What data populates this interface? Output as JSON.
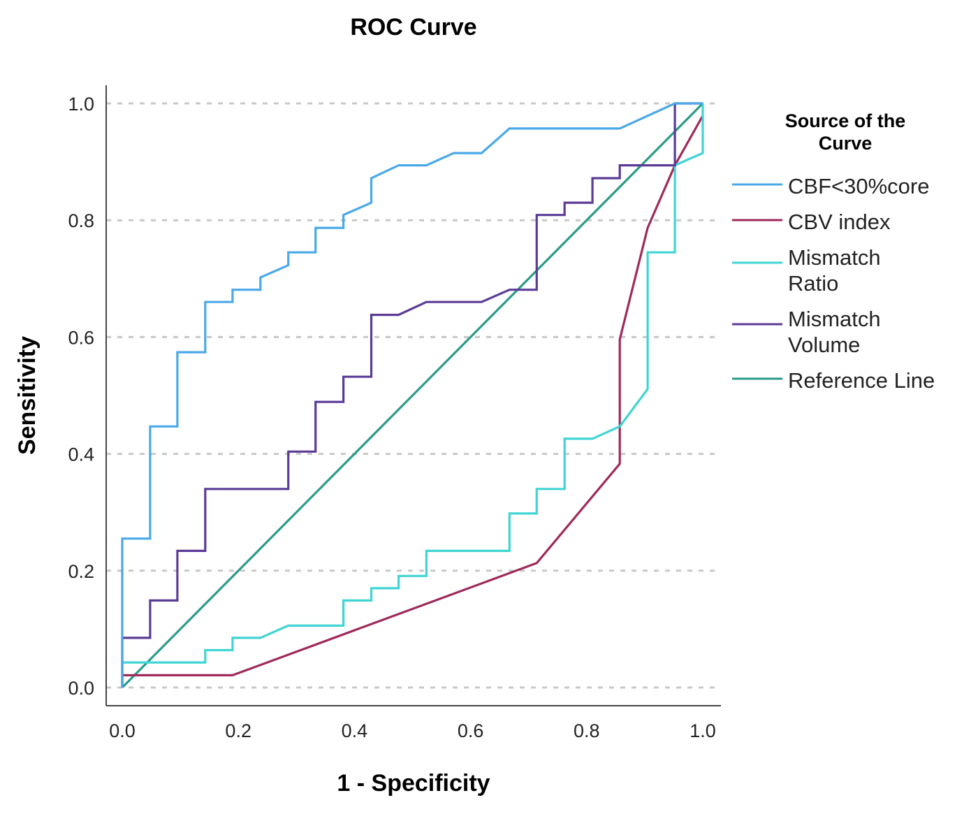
{
  "chart_data": {
    "type": "line",
    "title": "ROC Curve",
    "xlabel": "1 - Specificity",
    "ylabel": "Sensitivity",
    "xlim": [
      0,
      1
    ],
    "ylim": [
      0,
      1
    ],
    "xticks": [
      "0.0",
      "0.2",
      "0.4",
      "0.6",
      "0.8",
      "1.0"
    ],
    "yticks": [
      "0.0",
      "0.2",
      "0.4",
      "0.6",
      "0.8",
      "1.0"
    ],
    "grid": "horizontal dashed",
    "legend": {
      "title": [
        "Source of the",
        "Curve"
      ],
      "placement": "right"
    },
    "series": [
      {
        "name": "CBF<30%core",
        "legend_lines": [
          "CBF<30%core"
        ],
        "color": "#4aa8e8",
        "points": [
          [
            0,
            0
          ],
          [
            0,
            0.255
          ],
          [
            0.048,
            0.255
          ],
          [
            0.048,
            0.447
          ],
          [
            0.095,
            0.447
          ],
          [
            0.095,
            0.574
          ],
          [
            0.143,
            0.574
          ],
          [
            0.143,
            0.66
          ],
          [
            0.19,
            0.66
          ],
          [
            0.19,
            0.681
          ],
          [
            0.238,
            0.681
          ],
          [
            0.238,
            0.702
          ],
          [
            0.286,
            0.723
          ],
          [
            0.286,
            0.745
          ],
          [
            0.333,
            0.745
          ],
          [
            0.333,
            0.787
          ],
          [
            0.381,
            0.787
          ],
          [
            0.381,
            0.809
          ],
          [
            0.429,
            0.83
          ],
          [
            0.429,
            0.872
          ],
          [
            0.476,
            0.894
          ],
          [
            0.524,
            0.894
          ],
          [
            0.571,
            0.915
          ],
          [
            0.619,
            0.915
          ],
          [
            0.667,
            0.957
          ],
          [
            0.857,
            0.957
          ],
          [
            0.952,
            1
          ],
          [
            1,
            1
          ]
        ]
      },
      {
        "name": "CBV index",
        "legend_lines": [
          "CBV index"
        ],
        "color": "#9e2a5a",
        "points": [
          [
            0,
            0
          ],
          [
            0,
            0.021
          ],
          [
            0.19,
            0.021
          ],
          [
            0.714,
            0.213
          ],
          [
            0.857,
            0.383
          ],
          [
            0.857,
            0.596
          ],
          [
            0.905,
            0.787
          ],
          [
            0.952,
            0.894
          ],
          [
            1,
            0.979
          ]
        ]
      },
      {
        "name": "Mismatch Ratio",
        "legend_lines": [
          "Mismatch",
          "Ratio"
        ],
        "color": "#40d4d4",
        "points": [
          [
            0,
            0
          ],
          [
            0,
            0.043
          ],
          [
            0.143,
            0.043
          ],
          [
            0.143,
            0.064
          ],
          [
            0.19,
            0.064
          ],
          [
            0.19,
            0.085
          ],
          [
            0.238,
            0.085
          ],
          [
            0.286,
            0.106
          ],
          [
            0.381,
            0.106
          ],
          [
            0.381,
            0.149
          ],
          [
            0.429,
            0.149
          ],
          [
            0.429,
            0.17
          ],
          [
            0.476,
            0.17
          ],
          [
            0.476,
            0.191
          ],
          [
            0.524,
            0.191
          ],
          [
            0.524,
            0.234
          ],
          [
            0.667,
            0.234
          ],
          [
            0.667,
            0.298
          ],
          [
            0.714,
            0.298
          ],
          [
            0.714,
            0.34
          ],
          [
            0.762,
            0.34
          ],
          [
            0.762,
            0.426
          ],
          [
            0.81,
            0.426
          ],
          [
            0.857,
            0.447
          ],
          [
            0.905,
            0.511
          ],
          [
            0.905,
            0.745
          ],
          [
            0.952,
            0.745
          ],
          [
            0.952,
            0.894
          ],
          [
            1,
            0.915
          ],
          [
            1,
            1
          ]
        ]
      },
      {
        "name": "Mismatch Volume",
        "legend_lines": [
          "Mismatch",
          "Volume"
        ],
        "color": "#5b3b96",
        "points": [
          [
            0,
            0
          ],
          [
            0,
            0.085
          ],
          [
            0.048,
            0.085
          ],
          [
            0.048,
            0.149
          ],
          [
            0.095,
            0.149
          ],
          [
            0.095,
            0.234
          ],
          [
            0.143,
            0.234
          ],
          [
            0.143,
            0.34
          ],
          [
            0.286,
            0.34
          ],
          [
            0.286,
            0.404
          ],
          [
            0.333,
            0.404
          ],
          [
            0.333,
            0.489
          ],
          [
            0.381,
            0.489
          ],
          [
            0.381,
            0.532
          ],
          [
            0.429,
            0.532
          ],
          [
            0.429,
            0.638
          ],
          [
            0.476,
            0.638
          ],
          [
            0.524,
            0.66
          ],
          [
            0.619,
            0.66
          ],
          [
            0.667,
            0.681
          ],
          [
            0.714,
            0.681
          ],
          [
            0.714,
            0.809
          ],
          [
            0.762,
            0.809
          ],
          [
            0.762,
            0.83
          ],
          [
            0.81,
            0.83
          ],
          [
            0.81,
            0.872
          ],
          [
            0.857,
            0.872
          ],
          [
            0.857,
            0.894
          ],
          [
            0.952,
            0.894
          ],
          [
            0.952,
            1
          ],
          [
            1,
            1
          ]
        ]
      },
      {
        "name": "Reference Line",
        "legend_lines": [
          "Reference Line"
        ],
        "color": "#2a9a8a",
        "points": [
          [
            0,
            0
          ],
          [
            1,
            1
          ]
        ]
      }
    ]
  }
}
